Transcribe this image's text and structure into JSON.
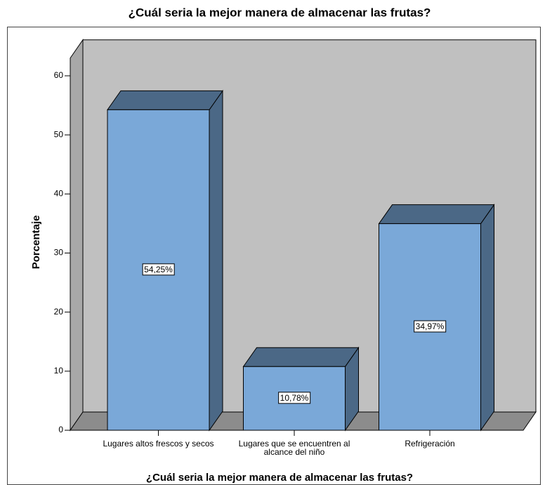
{
  "chart_data": {
    "type": "bar3d",
    "title": "¿Cuál seria la mejor manera de almacenar las frutas?",
    "x_label": "¿Cuál seria la mejor manera de almacenar las frutas?",
    "y_label": "Porcentaje",
    "categories": [
      "Lugares altos frescos y secos",
      "Lugares que se encuentren al alcance del niño",
      "Refrigeración"
    ],
    "values": [
      54.25,
      10.78,
      34.97
    ],
    "value_labels": [
      "54,25%",
      "10,78%",
      "34,97%"
    ],
    "color": "#7aa8d8",
    "ylim": [
      0,
      63
    ],
    "yticks": [
      0,
      10,
      20,
      30,
      40,
      50,
      60
    ],
    "grid": false
  }
}
